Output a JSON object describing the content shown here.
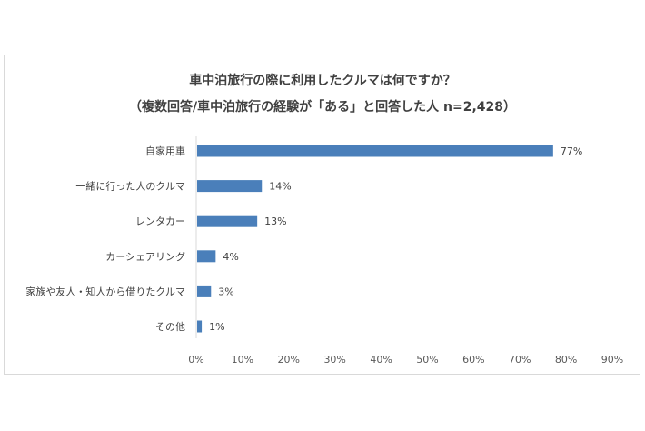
{
  "chart_data": {
    "type": "bar",
    "orientation": "horizontal",
    "title": "車中泊旅行の際に利用したクルマは何ですか？",
    "subtitle": "（複数回答/車中泊旅行の経験が「ある」と回答した人 n=2,428）",
    "categories": [
      "自家用車",
      "一緒に行った人のクルマ",
      "レンタカー",
      "カーシェアリング",
      "家族や友人・知人から借りたクルマ",
      "その他"
    ],
    "values": [
      77,
      14,
      13,
      4,
      3,
      1
    ],
    "value_labels": [
      "77%",
      "14%",
      "13%",
      "4%",
      "3%",
      "1%"
    ],
    "x_ticks": [
      "0%",
      "10%",
      "20%",
      "30%",
      "40%",
      "50%",
      "60%",
      "70%",
      "80%",
      "90%"
    ],
    "xlim": [
      0,
      90
    ],
    "grid": false,
    "bar_color": "#4a7fba"
  }
}
